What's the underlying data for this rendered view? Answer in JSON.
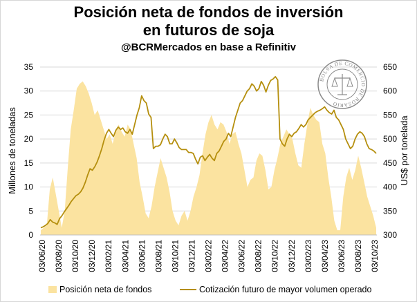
{
  "title_line1": "Posición neta de fondos de inversión",
  "title_line2": "en futuros de soja",
  "subtitle": "@BCRMercados en base a Refinitiv",
  "seal_text": "BOLSA DE COMERCIO DE ROSARIO",
  "colors": {
    "area": "#fbe3a0",
    "line": "#b58f0e",
    "seal": "#8a8a8a"
  },
  "chart_data": {
    "type": "area+line",
    "x_tick_labels": [
      "03/06/20",
      "03/08/20",
      "03/10/20",
      "03/12/20",
      "03/02/21",
      "03/04/21",
      "03/06/21",
      "03/08/21",
      "03/10/21",
      "03/12/21",
      "03/02/22",
      "03/04/22",
      "03/06/22",
      "03/08/22",
      "03/10/22",
      "03/12/22",
      "03/02/23",
      "03/04/23",
      "03/06/23",
      "03/08/23",
      "03/10/23"
    ],
    "y_left": {
      "label": "Millones de toneladas",
      "min": 0,
      "max": 35,
      "ticks": [
        0,
        5,
        10,
        15,
        20,
        25,
        30,
        35
      ]
    },
    "y_right": {
      "label": "US$ por tonelada",
      "min": 300,
      "max": 650,
      "ticks": [
        300,
        350,
        400,
        450,
        500,
        550,
        600,
        650
      ]
    },
    "series": [
      {
        "name": "Posición neta de fondos",
        "axis": "left",
        "kind": "area",
        "values": [
          1.0,
          1.5,
          2.0,
          9.5,
          12.0,
          8.5,
          5.0,
          1.5,
          5.0,
          14.0,
          22.0,
          26.0,
          30.5,
          31.5,
          32.0,
          31.0,
          29.5,
          27.5,
          25.0,
          26.0,
          24.0,
          22.0,
          20.0,
          21.0,
          19.0,
          21.5,
          23.0,
          21.5,
          20.5,
          23.0,
          22.0,
          19.0,
          16.0,
          11.0,
          8.0,
          4.5,
          3.5,
          6.0,
          10.0,
          13.0,
          16.0,
          14.0,
          12.0,
          9.0,
          5.0,
          3.0,
          2.0,
          4.0,
          5.0,
          3.0,
          5.0,
          8.0,
          10.0,
          12.5,
          17.0,
          21.0,
          23.5,
          25.0,
          23.0,
          22.0,
          23.5,
          23.0,
          21.5,
          19.0,
          21.0,
          21.5,
          19.0,
          17.0,
          13.5,
          10.0,
          11.5,
          12.0,
          15.5,
          17.0,
          16.5,
          13.5,
          9.5,
          10.0,
          13.5,
          16.0,
          19.0,
          20.5,
          22.0,
          21.0,
          20.0,
          17.0,
          14.5,
          14.0,
          19.0,
          23.0,
          26.5,
          25.0,
          24.0,
          23.5,
          19.0,
          17.0,
          12.0,
          8.0,
          3.0,
          1.0,
          1.0,
          8.0,
          12.0,
          14.0,
          11.5,
          13.5,
          16.5,
          14.0,
          11.0,
          8.0,
          6.0,
          4.0,
          1.5
        ]
      },
      {
        "name": "Cotización futuro de mayor volumen operado",
        "axis": "right",
        "kind": "line",
        "values": [
          315,
          317,
          320,
          324,
          332,
          327,
          325,
          322,
          334,
          340,
          348,
          355,
          362,
          370,
          376,
          382,
          385,
          390,
          398,
          410,
          425,
          438,
          435,
          442,
          452,
          465,
          480,
          498,
          512,
          520,
          512,
          505,
          518,
          525,
          520,
          523,
          515,
          512,
          520,
          510,
          530,
          550,
          565,
          590,
          580,
          575,
          552,
          545,
          480,
          485,
          485,
          488,
          500,
          510,
          505,
          490,
          490,
          500,
          492,
          482,
          478,
          478,
          478,
          472,
          472,
          470,
          458,
          448,
          462,
          465,
          455,
          462,
          468,
          460,
          455,
          470,
          475,
          485,
          495,
          500,
          512,
          505,
          525,
          545,
          560,
          575,
          580,
          590,
          600,
          605,
          615,
          610,
          600,
          605,
          620,
          612,
          598,
          612,
          622,
          625,
          630,
          623,
          500,
          490,
          485,
          500,
          510,
          505,
          512,
          515,
          522,
          530,
          525,
          530,
          540,
          545,
          550,
          555,
          558,
          560,
          563,
          567,
          560,
          555,
          552,
          560,
          545,
          540,
          530,
          520,
          500,
          490,
          480,
          485,
          500,
          510,
          515,
          512,
          505,
          490,
          480,
          478,
          475,
          470
        ]
      }
    ],
    "legend_position": "bottom",
    "grid": true
  }
}
